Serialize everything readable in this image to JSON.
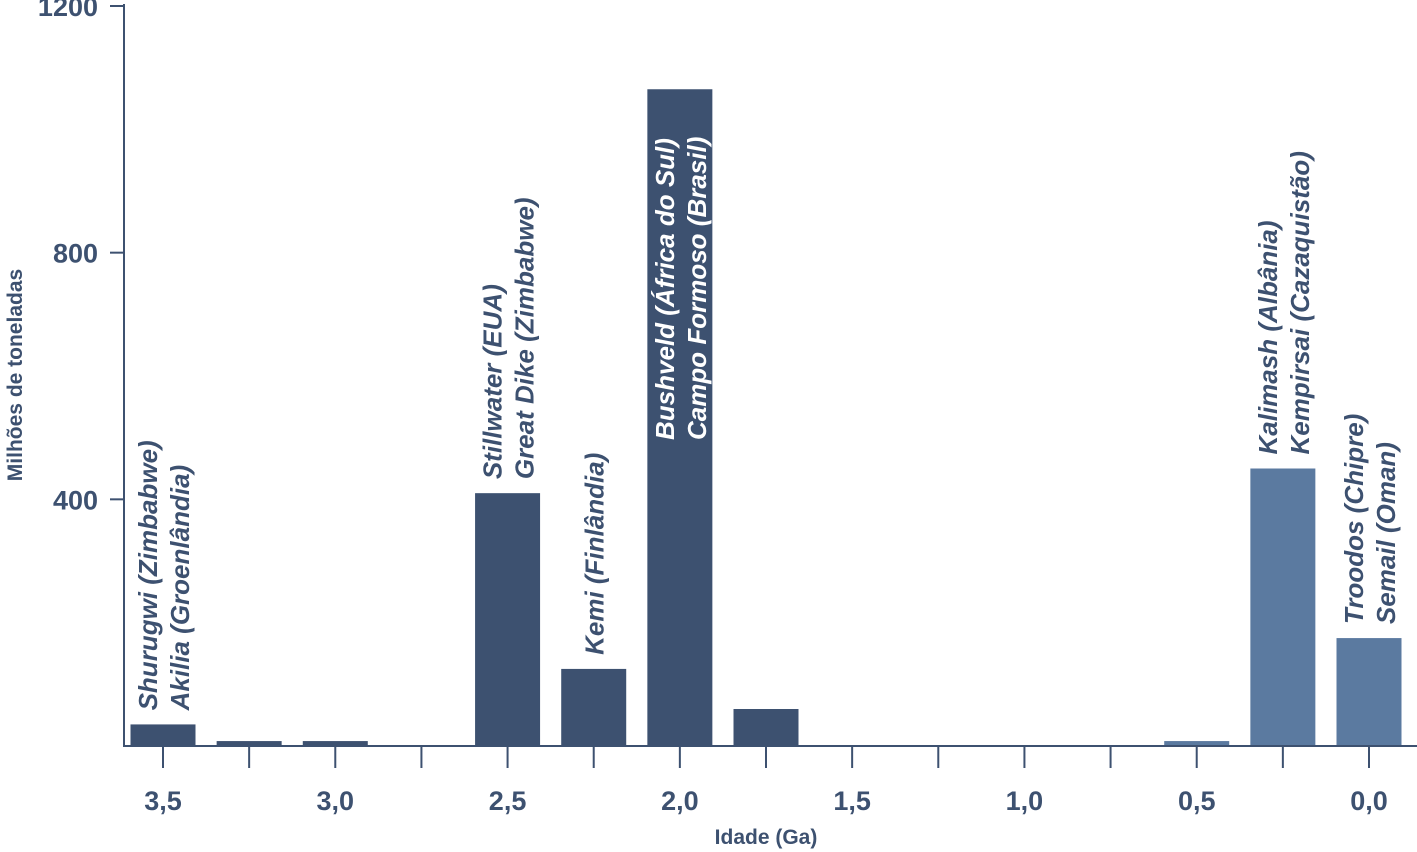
{
  "chart_data": {
    "type": "bar",
    "xlabel": "Idade (Ga)",
    "ylabel": "Milhões de toneladas",
    "ylim": [
      0,
      1200
    ],
    "xlim": [
      3.5,
      0.0
    ],
    "x_reversed": true,
    "grid": false,
    "yticks": [
      "400",
      "800",
      "1200"
    ],
    "ytick_values": [
      400,
      800,
      1200
    ],
    "xticks": [
      "3,5",
      "3,0",
      "2,5",
      "2,0",
      "1,5",
      "1,0",
      "0,5",
      "0,0"
    ],
    "xtick_values": [
      3.5,
      3.0,
      2.5,
      2.0,
      1.5,
      1.0,
      0.5,
      0.0
    ],
    "colors": {
      "precambrian": "#3d5170",
      "phanerozoic": "#5b7aa0",
      "axis": "#3d5170"
    },
    "bars": [
      {
        "x": 3.5,
        "value": 35,
        "color": "precambrian",
        "labels": [
          "Shurugwi (Zimbabwe)",
          "Akilia (Groenlândia)"
        ]
      },
      {
        "x": 3.25,
        "value": 8,
        "color": "precambrian",
        "labels": []
      },
      {
        "x": 3.0,
        "value": 8,
        "color": "precambrian",
        "labels": []
      },
      {
        "x": 2.5,
        "value": 410,
        "color": "precambrian",
        "labels": [
          "Stillwater (EUA)",
          "Great Dike (Zimbabwe)"
        ]
      },
      {
        "x": 2.25,
        "value": 125,
        "color": "precambrian",
        "labels": [
          "Kemi (Finlândia)"
        ]
      },
      {
        "x": 2.0,
        "value": 1065,
        "color": "precambrian",
        "labels": [
          "Bushveld (África do Sul)",
          "Campo Formoso (Brasil)"
        ],
        "labels_inside": true
      },
      {
        "x": 1.75,
        "value": 60,
        "color": "precambrian",
        "labels": []
      },
      {
        "x": 0.5,
        "value": 8,
        "color": "phanerozoic",
        "labels": []
      },
      {
        "x": 0.25,
        "value": 450,
        "color": "phanerozoic",
        "labels": [
          "Kalimash (Albânia)",
          "Kempirsai (Cazaquistão)"
        ]
      },
      {
        "x": 0.0,
        "value": 175,
        "color": "phanerozoic",
        "labels": [
          "Troodos (Chipre)",
          "Semail (Oman)"
        ]
      }
    ]
  }
}
